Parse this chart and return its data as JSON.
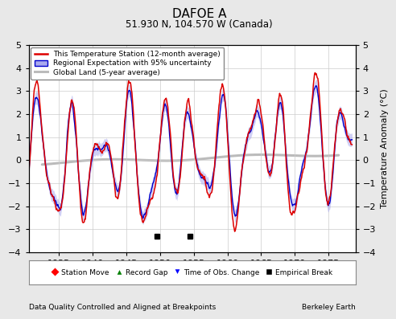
{
  "title": "DAFOE A",
  "subtitle": "51.930 N, 104.570 W (Canada)",
  "xlabel_bottom": "Data Quality Controlled and Aligned at Breakpoints",
  "xlabel_right": "Berkeley Earth",
  "ylabel": "Temperature Anomaly (°C)",
  "xlim": [
    1930.5,
    1979.0
  ],
  "ylim": [
    -4,
    5
  ],
  "yticks": [
    -4,
    -3,
    -2,
    -1,
    0,
    1,
    2,
    3,
    4,
    5
  ],
  "xticks": [
    1935,
    1940,
    1945,
    1950,
    1955,
    1960,
    1965,
    1970,
    1975
  ],
  "empirical_breaks": [
    1949.5,
    1954.5
  ],
  "bg_color": "#e8e8e8",
  "plot_bg_color": "#ffffff",
  "grid_color": "#cccccc",
  "red_line_color": "#dd0000",
  "blue_line_color": "#0000cc",
  "blue_fill_color": "#aaaaee",
  "gray_line_color": "#bbbbbb"
}
